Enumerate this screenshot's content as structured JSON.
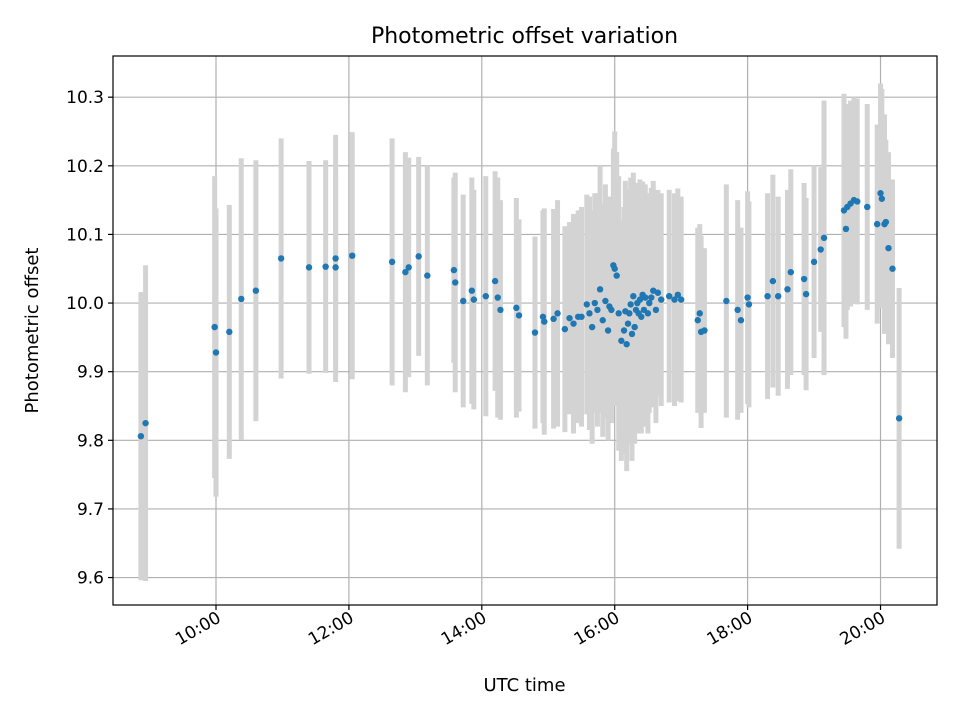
{
  "chart_data": {
    "type": "scatter",
    "title": "Photometric offset variation",
    "xlabel": "UTC time",
    "ylabel": "Photometric offset",
    "x_unit": "UTC hour of day",
    "xlim": [
      8.45,
      20.85
    ],
    "ylim": [
      9.56,
      10.36
    ],
    "x_ticks": [
      {
        "value": 10,
        "label": "10:00"
      },
      {
        "value": 12,
        "label": "12:00"
      },
      {
        "value": 14,
        "label": "14:00"
      },
      {
        "value": 16,
        "label": "16:00"
      },
      {
        "value": 18,
        "label": "18:00"
      },
      {
        "value": 20,
        "label": "20:00"
      }
    ],
    "y_ticks": [
      {
        "value": 9.6,
        "label": "9.6"
      },
      {
        "value": 9.7,
        "label": "9.7"
      },
      {
        "value": 9.8,
        "label": "9.8"
      },
      {
        "value": 9.9,
        "label": "9.9"
      },
      {
        "value": 10.0,
        "label": "10.0"
      },
      {
        "value": 10.1,
        "label": "10.1"
      },
      {
        "value": 10.2,
        "label": "10.2"
      },
      {
        "value": 10.3,
        "label": "10.3"
      }
    ],
    "grid": true,
    "legend": "none",
    "colors": {
      "points": "#1f77b4",
      "error_bars": "#d3d3d3"
    },
    "series": [
      {
        "style": "points-with-error-bars",
        "x": [
          8.87,
          8.94,
          9.98,
          10.0,
          10.2,
          10.38,
          10.6,
          10.98,
          11.4,
          11.65,
          11.8,
          11.8,
          12.05,
          12.65,
          12.85,
          12.9,
          13.05,
          13.18,
          13.58,
          13.6,
          13.72,
          13.85,
          13.88,
          14.06,
          14.2,
          14.24,
          14.28,
          14.52,
          14.56,
          14.8,
          14.92,
          14.94,
          15.08,
          15.14,
          15.25,
          15.32,
          15.38,
          15.45,
          15.5,
          15.58,
          15.62,
          15.66,
          15.7,
          15.74,
          15.78,
          15.82,
          15.86,
          15.9,
          15.92,
          15.95,
          15.98,
          16.0,
          16.03,
          16.06,
          16.1,
          16.14,
          16.16,
          16.18,
          16.2,
          16.22,
          16.24,
          16.26,
          16.28,
          16.3,
          16.32,
          16.34,
          16.36,
          16.38,
          16.4,
          16.42,
          16.44,
          16.46,
          16.5,
          16.52,
          16.55,
          16.58,
          16.62,
          16.65,
          16.7,
          16.82,
          16.9,
          16.95,
          17.0,
          17.25,
          17.28,
          17.3,
          17.35,
          17.68,
          17.85,
          17.9,
          18.0,
          18.02,
          18.3,
          18.38,
          18.46,
          18.6,
          18.65,
          18.85,
          18.88,
          19.0,
          19.1,
          19.15,
          19.45,
          19.48,
          19.5,
          19.55,
          19.6,
          19.65,
          19.8,
          19.95,
          20.0,
          20.02,
          20.06,
          20.08,
          20.12,
          20.18,
          20.28
        ],
        "y": [
          9.806,
          9.825,
          9.965,
          9.928,
          9.958,
          10.006,
          10.018,
          10.065,
          10.052,
          10.053,
          10.065,
          10.052,
          10.069,
          10.06,
          10.045,
          10.052,
          10.068,
          10.04,
          10.048,
          10.03,
          10.003,
          10.018,
          10.005,
          10.01,
          10.032,
          10.008,
          9.99,
          9.993,
          9.982,
          9.957,
          9.98,
          9.973,
          9.977,
          9.985,
          9.962,
          9.978,
          9.97,
          9.98,
          9.98,
          9.998,
          9.985,
          9.965,
          10.0,
          9.99,
          10.02,
          9.975,
          10.003,
          9.96,
          9.995,
          9.99,
          10.055,
          10.05,
          10.04,
          9.985,
          9.945,
          9.96,
          9.988,
          9.94,
          9.97,
          9.985,
          9.998,
          9.955,
          10.01,
          9.965,
          9.99,
          10.0,
          9.985,
          10.005,
          9.98,
          10.012,
          9.99,
          10.008,
          9.985,
          10.0,
          10.008,
          10.018,
          9.99,
          10.015,
          10.005,
          10.01,
          10.005,
          10.012,
          10.005,
          9.975,
          9.985,
          9.958,
          9.96,
          10.003,
          9.99,
          9.975,
          10.008,
          9.998,
          10.01,
          10.032,
          10.01,
          10.02,
          10.045,
          10.035,
          10.013,
          10.06,
          10.078,
          10.095,
          10.135,
          10.108,
          10.14,
          10.145,
          10.15,
          10.148,
          10.14,
          10.115,
          10.16,
          10.152,
          10.115,
          10.118,
          10.08,
          10.05,
          9.832
        ],
        "err": [
          0.21,
          0.23,
          0.22,
          0.21,
          0.185,
          0.205,
          0.19,
          0.175,
          0.155,
          0.155,
          0.18,
          0.14,
          0.18,
          0.18,
          0.175,
          0.16,
          0.145,
          0.16,
          0.135,
          0.16,
          0.155,
          0.165,
          0.16,
          0.175,
          0.16,
          0.175,
          0.16,
          0.16,
          0.14,
          0.14,
          0.155,
          0.165,
          0.16,
          0.165,
          0.15,
          0.14,
          0.16,
          0.155,
          0.16,
          0.16,
          0.17,
          0.17,
          0.16,
          0.17,
          0.18,
          0.17,
          0.17,
          0.16,
          0.16,
          0.165,
          0.17,
          0.2,
          0.18,
          0.2,
          0.175,
          0.18,
          0.19,
          0.185,
          0.175,
          0.18,
          0.185,
          0.185,
          0.18,
          0.17,
          0.18,
          0.175,
          0.175,
          0.175,
          0.17,
          0.165,
          0.17,
          0.165,
          0.175,
          0.16,
          0.16,
          0.16,
          0.165,
          0.15,
          0.155,
          0.155,
          0.155,
          0.155,
          0.15,
          0.135,
          0.13,
          0.14,
          0.12,
          0.17,
          0.16,
          0.135,
          0.155,
          0.15,
          0.15,
          0.155,
          0.145,
          0.145,
          0.15,
          0.14,
          0.14,
          0.14,
          0.12,
          0.2,
          0.17,
          0.16,
          0.15,
          0.15,
          0.15,
          0.15,
          0.15,
          0.145,
          0.16,
          0.16,
          0.16,
          0.12,
          0.14,
          0.13,
          0.19
        ]
      }
    ]
  }
}
